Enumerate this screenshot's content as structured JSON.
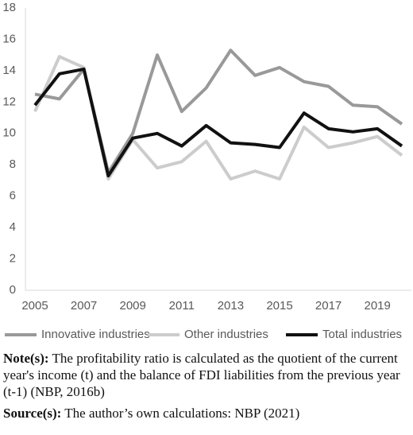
{
  "chart_data": {
    "type": "line",
    "x": [
      2005,
      2006,
      2007,
      2008,
      2009,
      2010,
      2011,
      2012,
      2013,
      2014,
      2015,
      2016,
      2017,
      2018,
      2019,
      2020
    ],
    "xlim": [
      2005,
      2020
    ],
    "xticks": [
      2005,
      2007,
      2009,
      2011,
      2013,
      2015,
      2017,
      2019
    ],
    "ylim": [
      0,
      18
    ],
    "yticks": [
      0,
      2,
      4,
      6,
      8,
      10,
      12,
      14,
      16,
      18
    ],
    "legend": "bottom",
    "series": [
      {
        "name": "Innovative industries",
        "color": "#999999",
        "values": [
          12.5,
          12.2,
          14.1,
          7.5,
          10.0,
          15.0,
          11.4,
          12.9,
          15.3,
          13.7,
          14.2,
          13.3,
          13.0,
          11.8,
          11.7,
          10.6
        ]
      },
      {
        "name": "Other industries",
        "color": "#cccccc",
        "values": [
          11.4,
          14.9,
          14.2,
          7.1,
          9.6,
          7.8,
          8.2,
          9.5,
          7.1,
          7.6,
          7.1,
          10.4,
          9.1,
          9.4,
          9.8,
          8.6
        ]
      },
      {
        "name": "Total industries",
        "color": "#111111",
        "values": [
          11.8,
          13.8,
          14.1,
          7.3,
          9.7,
          10.0,
          9.2,
          10.5,
          9.4,
          9.3,
          9.1,
          11.3,
          10.3,
          10.1,
          10.3,
          9.2
        ]
      }
    ]
  },
  "note": {
    "label": "Note(s):",
    "text": "The profitability ratio is calculated as the quotient of the current year's income (t) and the balance of FDI liabilities from the previous year (t-1) (NBP, 2016b)"
  },
  "source": {
    "label": "Source(s):",
    "text": "The author’s own calculations: NBP (2021)"
  }
}
